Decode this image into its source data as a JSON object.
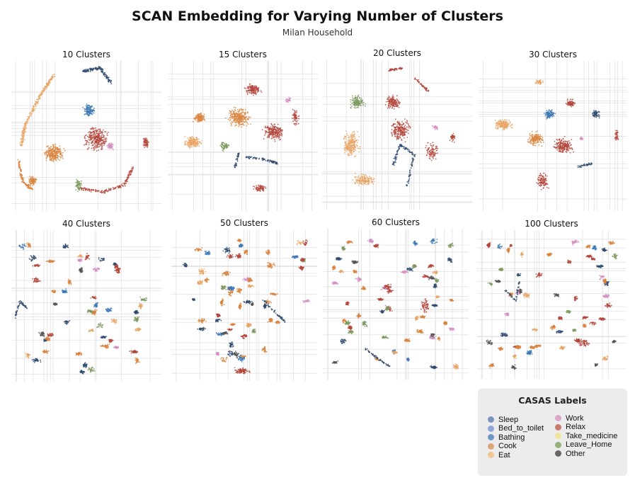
{
  "header": {
    "title": "SCAN Embedding for Varying Number of Clusters",
    "subtitle": "Milan Household"
  },
  "legend": {
    "title": "CASAS Labels",
    "items": [
      {
        "label": "Sleep",
        "color": "#7b93bd"
      },
      {
        "label": "Bed_to_toilet",
        "color": "#8ea6d8"
      },
      {
        "label": "Bathing",
        "color": "#6f97c6"
      },
      {
        "label": "Cook",
        "color": "#dfa779"
      },
      {
        "label": "Eat",
        "color": "#f2c695"
      },
      {
        "label": "Work",
        "color": "#d9a6c9"
      },
      {
        "label": "Relax",
        "color": "#c97a6c"
      },
      {
        "label": "Take_medicine",
        "color": "#f0e39a"
      },
      {
        "label": "Leave_Home",
        "color": "#93b07f"
      },
      {
        "label": "Other",
        "color": "#666666"
      }
    ]
  },
  "chart_data": [
    {
      "type": "scatter",
      "title": "10 Clusters",
      "clusters": 10
    },
    {
      "type": "scatter",
      "title": "15 Clusters",
      "clusters": 15
    },
    {
      "type": "scatter",
      "title": "20 Clusters",
      "clusters": 20
    },
    {
      "type": "scatter",
      "title": "30 Clusters",
      "clusters": 30
    },
    {
      "type": "scatter",
      "title": "40 Clusters",
      "clusters": 40
    },
    {
      "type": "scatter",
      "title": "50 Clusters",
      "clusters": 50
    },
    {
      "type": "scatter",
      "title": "60 Clusters",
      "clusters": 60
    },
    {
      "type": "scatter",
      "title": "100 Clusters",
      "clusters": 100
    }
  ]
}
